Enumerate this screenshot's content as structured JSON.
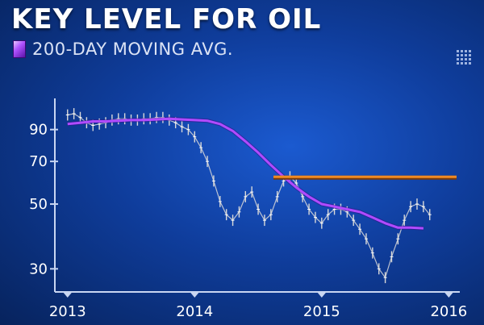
{
  "header": {
    "title": "KEY LEVEL FOR OIL",
    "subtitle": "200-DAY MOVING AVG."
  },
  "colors": {
    "background": "#1047b3",
    "price_line": "#d9d9d9",
    "moving_average": "#b04bff",
    "key_level": "#f08a24",
    "axes": "#c9d6f2"
  },
  "chart_data": {
    "type": "line",
    "title": "KEY LEVEL FOR OIL",
    "subtitle": "200-DAY MOVING AVG.",
    "xlabel": "",
    "ylabel": "",
    "x_tick_labels": [
      "2013",
      "2014",
      "2015",
      "2016"
    ],
    "x_ticks": [
      2013,
      2014,
      2015,
      2016
    ],
    "y_tick_labels": [
      "90",
      "70",
      "50",
      "30"
    ],
    "y_ticks": [
      90,
      70,
      50,
      30
    ],
    "xlim": [
      2012.9,
      2016.15
    ],
    "ylim": [
      25,
      108
    ],
    "y_scale": "log",
    "grid": false,
    "series": [
      {
        "name": "",
        "style": "price-bars",
        "x": [
          2013.0,
          2013.05,
          2013.1,
          2013.15,
          2013.2,
          2013.25,
          2013.3,
          2013.35,
          2013.4,
          2013.45,
          2013.5,
          2013.55,
          2013.6,
          2013.65,
          2013.7,
          2013.75,
          2013.8,
          2013.85,
          2013.9,
          2013.95,
          2014.0,
          2014.05,
          2014.1,
          2014.15,
          2014.2,
          2014.25,
          2014.3,
          2014.35,
          2014.4,
          2014.45,
          2014.5,
          2014.55,
          2014.6,
          2014.65,
          2014.7,
          2014.75,
          2014.8,
          2014.85,
          2014.9,
          2014.95,
          2015.0,
          2015.05,
          2015.1,
          2015.15,
          2015.2,
          2015.25,
          2015.3,
          2015.35,
          2015.4,
          2015.45,
          2015.5,
          2015.55,
          2015.6,
          2015.65,
          2015.7,
          2015.75,
          2015.8,
          2015.85
        ],
        "values": [
          101,
          102,
          99,
          95,
          93,
          94,
          95,
          97,
          98,
          98,
          97,
          97,
          98,
          98,
          99,
          99,
          97,
          95,
          92,
          90,
          85,
          78,
          70,
          60,
          51,
          46,
          44,
          47,
          53,
          55,
          48,
          44,
          46,
          53,
          60,
          62,
          59,
          53,
          48,
          45,
          43,
          46,
          48,
          48,
          47,
          44,
          41,
          38,
          34,
          30,
          28,
          33,
          38,
          44,
          49,
          50,
          49,
          46
        ]
      },
      {
        "name": "200-DAY MOVING AVG.",
        "style": "line",
        "x": [
          2013.0,
          2013.1,
          2013.2,
          2013.3,
          2013.4,
          2013.5,
          2013.6,
          2013.7,
          2013.8,
          2013.9,
          2014.0,
          2014.1,
          2014.2,
          2014.3,
          2014.4,
          2014.5,
          2014.6,
          2014.7,
          2014.8,
          2014.9,
          2015.0,
          2015.1,
          2015.2,
          2015.3,
          2015.4,
          2015.5,
          2015.6,
          2015.7,
          2015.8
        ],
        "values": [
          94,
          95,
          96,
          96,
          96.5,
          97,
          97,
          97.5,
          98,
          97.5,
          97,
          96.5,
          94,
          89,
          82,
          75,
          68,
          62,
          57,
          53,
          50,
          49,
          48,
          47,
          45,
          43,
          41.5,
          41.5,
          41.3
        ]
      },
      {
        "name": "",
        "style": "horizontal-level",
        "x": [
          2014.62,
          2016.15
        ],
        "values": [
          62,
          62
        ]
      }
    ]
  }
}
